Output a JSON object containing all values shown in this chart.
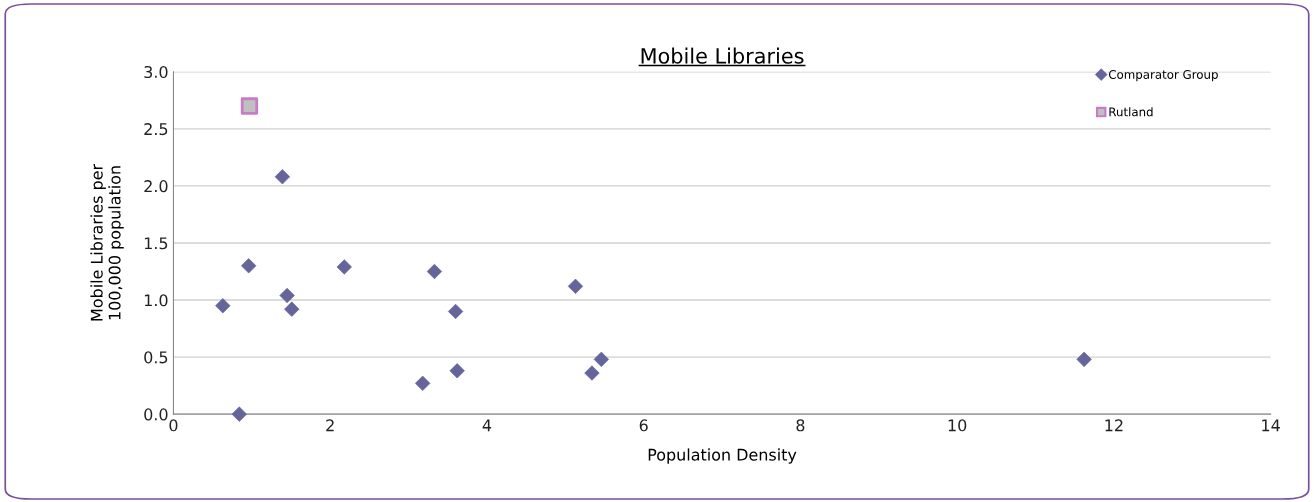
{
  "chart_data": {
    "type": "scatter",
    "title": "Mobile Libraries",
    "xlabel": "Population Density",
    "ylabel": "Mobile Libraries per\n100,000 population",
    "series": [
      {
        "name": "Comparator Group",
        "color": "#65659c",
        "marker": "diamond",
        "x": [
          1.39,
          0.96,
          0.63,
          1.45,
          1.51,
          0.84,
          2.18,
          3.33,
          3.6,
          3.62,
          3.18,
          5.13,
          5.34,
          5.46,
          11.62
        ],
        "values": [
          2.08,
          1.3,
          0.95,
          1.04,
          0.92,
          0.0,
          1.29,
          1.25,
          0.9,
          0.38,
          0.27,
          1.12,
          0.36,
          0.48,
          0.48
        ]
      },
      {
        "name": "Rutland",
        "color": "#c77cc7",
        "marker": "square",
        "x": [
          0.97
        ],
        "values": [
          2.7
        ]
      }
    ],
    "xlim": [
      0,
      14
    ],
    "xticks": [
      0,
      2,
      4,
      6,
      8,
      10,
      12,
      14
    ],
    "ylim": [
      0,
      3
    ],
    "yticks": [
      {
        "value": 0,
        "label": "0.0"
      },
      {
        "value": 0.5,
        "label": "0.5"
      },
      {
        "value": 1,
        "label": "1.0"
      },
      {
        "value": 1.5,
        "label": "1.5"
      },
      {
        "value": 2,
        "label": "2.0"
      },
      {
        "value": 2.5,
        "label": "2.5"
      },
      {
        "value": 3,
        "label": "3.0"
      }
    ],
    "grid": "y",
    "legend": "top right"
  }
}
